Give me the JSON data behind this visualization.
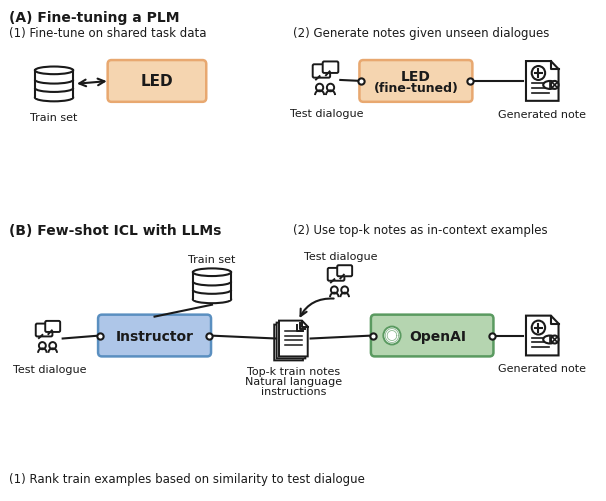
{
  "bg_color": "#ffffff",
  "title_A": "(A) Fine-tuning a PLM",
  "title_B": "(B) Few-shot ICL with LLMs",
  "label_1a": "(1) Fine-tune on shared task data",
  "label_2a": "(2) Generate notes given unseen dialogues",
  "label_2b": "(2) Use top-k notes as in-context examples",
  "label_1b": "(1) Rank train examples based on similarity to test dialogue",
  "led_color": "#f5d5b0",
  "led_border": "#e8a870",
  "instructor_color": "#aec6e8",
  "instructor_border": "#5a8fc0",
  "openai_color": "#b5d5b0",
  "openai_border": "#5a9a60",
  "arrow_color": "#1a1a1a",
  "text_color": "#1a1a1a",
  "icon_color": "#1a1a1a"
}
